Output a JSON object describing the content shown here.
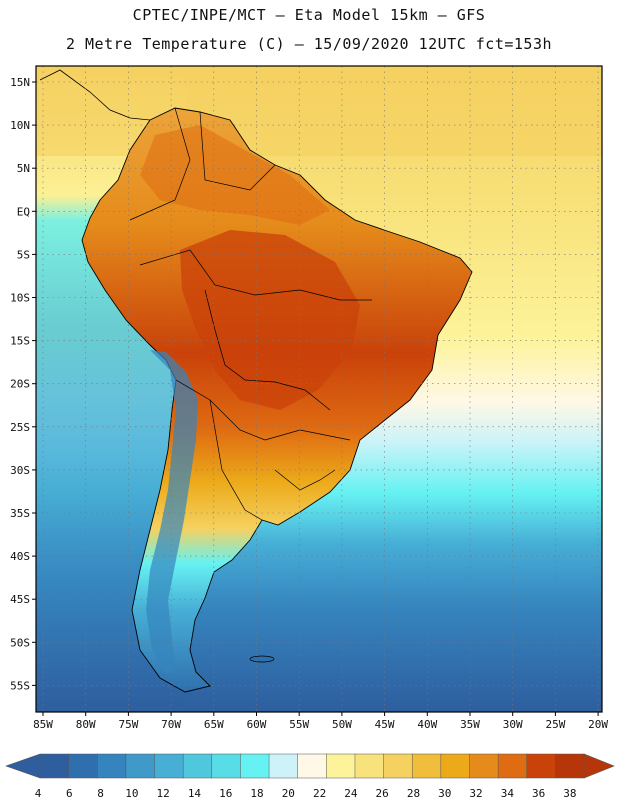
{
  "title": {
    "line1": "CPTEC/INPE/MCT  –  Eta Model 15km  –  GFS",
    "line2": "2 Metre Temperature (C) – 15/09/2020 12UTC fct=153h"
  },
  "axes": {
    "lat_labels": [
      "15N",
      "10N",
      "5N",
      "EQ",
      "5S",
      "10S",
      "15S",
      "20S",
      "25S",
      "30S",
      "35S",
      "40S",
      "45S",
      "50S",
      "55S"
    ],
    "lon_labels": [
      "85W",
      "80W",
      "75W",
      "70W",
      "65W",
      "60W",
      "55W",
      "50W",
      "45W",
      "40W",
      "35W",
      "30W",
      "25W",
      "20W"
    ]
  },
  "colorbar": {
    "ticks": [
      "4",
      "6",
      "8",
      "10",
      "12",
      "14",
      "16",
      "18",
      "20",
      "22",
      "24",
      "26",
      "28",
      "30",
      "32",
      "34",
      "36",
      "38"
    ],
    "colors": [
      "#2e5e9e",
      "#2f6fae",
      "#3584be",
      "#3f99c9",
      "#47aed6",
      "#4fc7dc",
      "#58dde6",
      "#66f2f2",
      "#cdf3f8",
      "#fff8e6",
      "#fdf39a",
      "#f8e27b",
      "#f5d160",
      "#f0bd3c",
      "#ecaa1a",
      "#e58b1b",
      "#df6b12",
      "#c9420a",
      "#b6360a"
    ]
  },
  "map": {
    "ocean_warm": "#f6d35a",
    "ocean_mid": "#fdf39a",
    "ocean_cool": "#4fc7dc",
    "ocean_cold": "#2f6fae",
    "land_hot": "#d2680e",
    "land_warm": "#eca43a",
    "coast_color": "#000000"
  }
}
